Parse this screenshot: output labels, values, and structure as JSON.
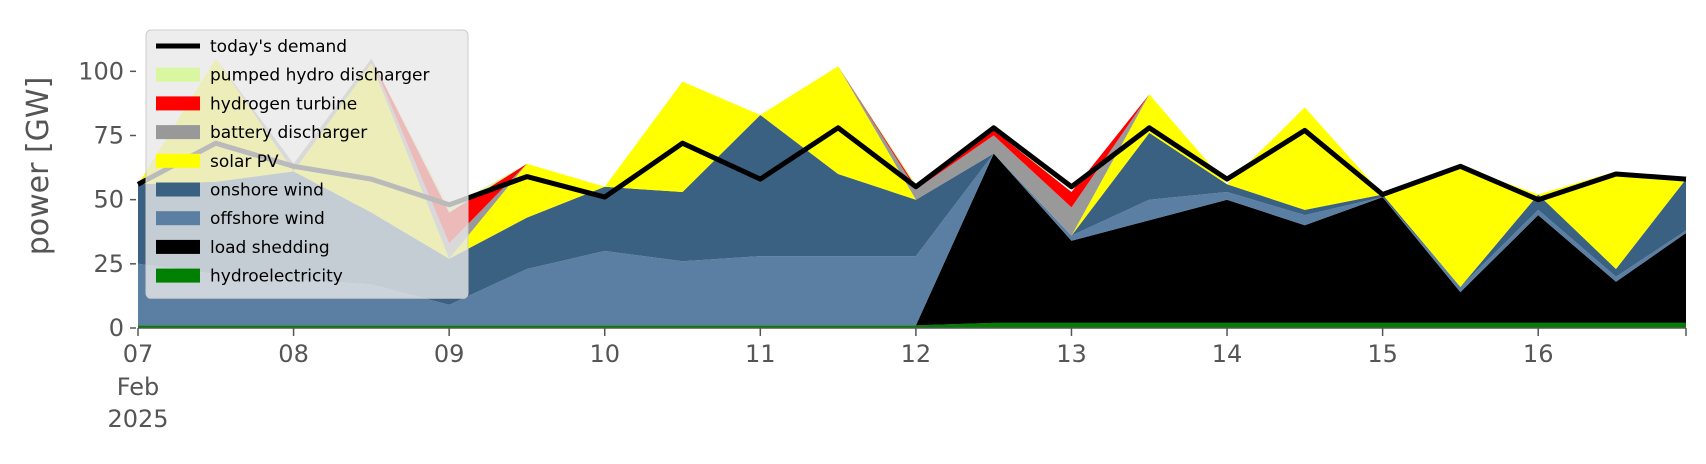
{
  "chart_data": {
    "type": "area",
    "stacked": true,
    "title": "",
    "xlabel": "",
    "ylabel": "power [GW]",
    "x_unit": "day of February 2025 (fractional)",
    "xlim": [
      7,
      16.95
    ],
    "ylim": [
      0,
      120
    ],
    "y_ticks": [
      0,
      25,
      50,
      75,
      100
    ],
    "x_ticks": [
      {
        "value": 7,
        "label": "07",
        "sub": [
          "Feb",
          "2025"
        ]
      },
      {
        "value": 8,
        "label": "08"
      },
      {
        "value": 9,
        "label": "09"
      },
      {
        "value": 10,
        "label": "10"
      },
      {
        "value": 11,
        "label": "11"
      },
      {
        "value": 12,
        "label": "12"
      },
      {
        "value": 13,
        "label": "13"
      },
      {
        "value": 14,
        "label": "14"
      },
      {
        "value": 15,
        "label": "15"
      },
      {
        "value": 16,
        "label": "16"
      }
    ],
    "grid": false,
    "legend_position": "top-left",
    "x": [
      7.0,
      7.5,
      8.0,
      8.5,
      9.0,
      9.5,
      10.0,
      10.5,
      11.0,
      11.5,
      12.0,
      12.5,
      13.0,
      13.5,
      14.0,
      14.5,
      15.0,
      15.5,
      16.0,
      16.5,
      16.95
    ],
    "series": [
      {
        "name": "hydroelectricity",
        "color": "#008000",
        "values": [
          1,
          1,
          1,
          1,
          1,
          1,
          1,
          1,
          1,
          1,
          1,
          2,
          2,
          2,
          2,
          2,
          2,
          2,
          2,
          2,
          2
        ]
      },
      {
        "name": "load shedding",
        "color": "#000000",
        "values": [
          0,
          0,
          0,
          0,
          0,
          0,
          0,
          0,
          0,
          0,
          0,
          66,
          32,
          40,
          48,
          38,
          49,
          12,
          42,
          16,
          35
        ]
      },
      {
        "name": "offshore wind",
        "color": "#5b7fa3",
        "values": [
          24,
          20,
          18,
          16,
          8,
          22,
          29,
          25,
          27,
          27,
          27,
          0,
          2,
          8,
          3,
          4,
          0,
          2,
          2,
          2,
          1
        ]
      },
      {
        "name": "onshore wind",
        "color": "#3b6182",
        "values": [
          31,
          36,
          42,
          28,
          18,
          20,
          25,
          27,
          55,
          32,
          22,
          0,
          0,
          26,
          3,
          2,
          1,
          0,
          6,
          3,
          20
        ]
      },
      {
        "name": "solar PV",
        "color": "#ffff00",
        "values": [
          0,
          48,
          0,
          58,
          0,
          21,
          0,
          43,
          0,
          42,
          0,
          0,
          0,
          15,
          0,
          40,
          0,
          47,
          0,
          38,
          0
        ]
      },
      {
        "name": "battery discharger",
        "color": "#999999",
        "values": [
          0,
          0,
          3,
          2,
          6,
          0,
          0,
          0,
          0,
          0,
          4,
          7,
          11,
          0,
          0,
          0,
          0,
          0,
          0,
          0,
          0
        ]
      },
      {
        "name": "hydrogen turbine",
        "color": "#ff0000",
        "values": [
          0,
          0,
          0,
          0,
          12,
          0,
          0,
          0,
          0,
          0,
          1,
          2,
          6,
          0,
          0,
          0,
          0,
          0,
          0,
          0,
          0
        ]
      },
      {
        "name": "pumped hydro discharger",
        "color": "#d9f7a0",
        "values": [
          0,
          0,
          0,
          0,
          2,
          0,
          0,
          0,
          0,
          0,
          1,
          1,
          0,
          0,
          0,
          0,
          0,
          0,
          0,
          0,
          0
        ]
      }
    ],
    "demand": {
      "name": "today's demand",
      "color": "#000000",
      "values": [
        56,
        72,
        63,
        58,
        48,
        59,
        51,
        72,
        58,
        78,
        55,
        78,
        55,
        78,
        58,
        77,
        52,
        63,
        50,
        60,
        58
      ]
    },
    "legend": [
      {
        "label": "today's demand",
        "kind": "line",
        "color": "#000000"
      },
      {
        "label": "pumped hydro discharger",
        "kind": "patch",
        "color": "#d9f7a0"
      },
      {
        "label": "hydrogen turbine",
        "kind": "patch",
        "color": "#ff0000"
      },
      {
        "label": "battery discharger",
        "kind": "patch",
        "color": "#999999"
      },
      {
        "label": "solar PV",
        "kind": "patch",
        "color": "#ffff00"
      },
      {
        "label": "onshore wind",
        "kind": "patch",
        "color": "#3b6182"
      },
      {
        "label": "offshore wind",
        "kind": "patch",
        "color": "#5b7fa3"
      },
      {
        "label": "load shedding",
        "kind": "patch",
        "color": "#000000"
      },
      {
        "label": "hydroelectricity",
        "kind": "patch",
        "color": "#008000"
      }
    ]
  }
}
